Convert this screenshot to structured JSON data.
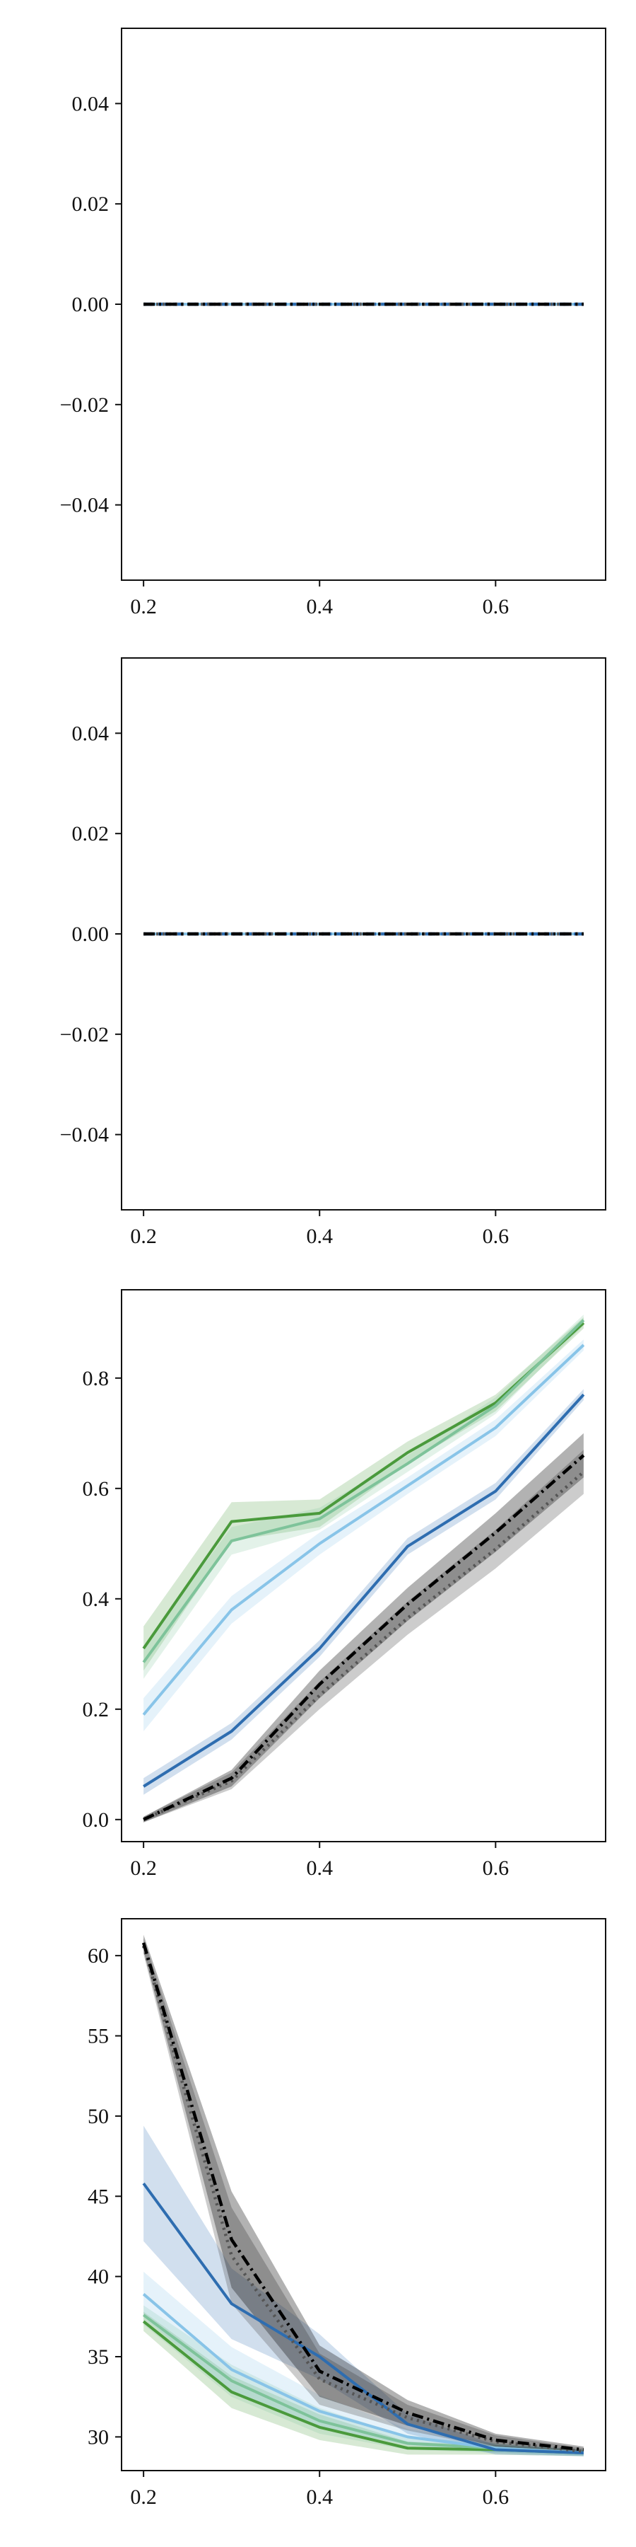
{
  "chart_data": [
    {
      "type": "line",
      "x": [
        0.2,
        0.3,
        0.4,
        0.5,
        0.6,
        0.7
      ],
      "xlim": [
        0.175,
        0.725
      ],
      "ylim": [
        -0.055,
        0.055
      ],
      "xticks": [
        0.2,
        0.4,
        0.6
      ],
      "xtick_labels": [
        "0.2",
        "0.4",
        "0.6"
      ],
      "yticks": [
        0.04,
        0.02,
        0.0,
        -0.02,
        -0.04
      ],
      "ytick_labels": [
        "0.04",
        "0.02",
        "0.00",
        "−0.02",
        "−0.04"
      ],
      "grid": false,
      "series": [
        {
          "color": "#4a9a3c",
          "style": "solid",
          "values": [
            0,
            0,
            0,
            0,
            0,
            0
          ]
        },
        {
          "color": "#7ec39a",
          "style": "solid",
          "values": [
            0,
            0,
            0,
            0,
            0,
            0
          ]
        },
        {
          "color": "#88c4e8",
          "style": "solid",
          "values": [
            0,
            0,
            0,
            0,
            0,
            0
          ]
        },
        {
          "color": "#2e6db0",
          "style": "dashed",
          "values": [
            0,
            0,
            0,
            0,
            0,
            0
          ]
        },
        {
          "color": "#555555",
          "style": "dotted",
          "values": [
            0,
            0,
            0,
            0,
            0,
            0
          ]
        },
        {
          "color": "#000000",
          "style": "dashdot",
          "values": [
            0,
            0,
            0,
            0,
            0,
            0
          ]
        }
      ]
    },
    {
      "type": "line",
      "x": [
        0.2,
        0.3,
        0.4,
        0.5,
        0.6,
        0.7
      ],
      "xlim": [
        0.175,
        0.725
      ],
      "ylim": [
        -0.055,
        0.055
      ],
      "xticks": [
        0.2,
        0.4,
        0.6
      ],
      "xtick_labels": [
        "0.2",
        "0.4",
        "0.6"
      ],
      "yticks": [
        0.04,
        0.02,
        0.0,
        -0.02,
        -0.04
      ],
      "ytick_labels": [
        "0.04",
        "0.02",
        "0.00",
        "−0.02",
        "−0.04"
      ],
      "grid": false,
      "series": [
        {
          "color": "#4a9a3c",
          "style": "solid",
          "values": [
            0,
            0,
            0,
            0,
            0,
            0
          ]
        },
        {
          "color": "#7ec39a",
          "style": "solid",
          "values": [
            0,
            0,
            0,
            0,
            0,
            0
          ]
        },
        {
          "color": "#88c4e8",
          "style": "solid",
          "values": [
            0,
            0,
            0,
            0,
            0,
            0
          ]
        },
        {
          "color": "#2e6db0",
          "style": "dashed",
          "values": [
            0,
            0,
            0,
            0,
            0,
            0
          ]
        },
        {
          "color": "#555555",
          "style": "dotted",
          "values": [
            0,
            0,
            0,
            0,
            0,
            0
          ]
        },
        {
          "color": "#000000",
          "style": "dashdot",
          "values": [
            0,
            0,
            0,
            0,
            0,
            0
          ]
        }
      ]
    },
    {
      "type": "line",
      "x": [
        0.2,
        0.3,
        0.4,
        0.5,
        0.6,
        0.7
      ],
      "xlim": [
        0.175,
        0.725
      ],
      "ylim": [
        -0.04,
        0.96
      ],
      "xticks": [
        0.2,
        0.4,
        0.6
      ],
      "xtick_labels": [
        "0.2",
        "0.4",
        "0.6"
      ],
      "yticks": [
        0.8,
        0.6,
        0.4,
        0.2,
        0.0
      ],
      "ytick_labels": [
        "0.8",
        "0.6",
        "0.4",
        "0.2",
        "0.0"
      ],
      "grid": false,
      "series": [
        {
          "color": "#4a9a3c",
          "style": "solid",
          "values": [
            0.31,
            0.54,
            0.555,
            0.665,
            0.755,
            0.9
          ],
          "band": [
            0.04,
            0.035,
            0.025,
            0.02,
            0.015,
            0.01
          ]
        },
        {
          "color": "#7ec39a",
          "style": "solid",
          "values": [
            0.285,
            0.505,
            0.545,
            0.645,
            0.75,
            0.905
          ],
          "band": [
            0.03,
            0.025,
            0.02,
            0.015,
            0.015,
            0.01
          ]
        },
        {
          "color": "#88c4e8",
          "style": "solid",
          "values": [
            0.19,
            0.38,
            0.5,
            0.605,
            0.71,
            0.86
          ],
          "band": [
            0.03,
            0.025,
            0.02,
            0.015,
            0.015,
            0.01
          ]
        },
        {
          "color": "#2e6db0",
          "style": "solid",
          "values": [
            0.06,
            0.16,
            0.31,
            0.495,
            0.595,
            0.77
          ],
          "band": [
            0.015,
            0.015,
            0.015,
            0.015,
            0.015,
            0.01
          ]
        },
        {
          "color": "#555555",
          "style": "dotted",
          "values": [
            0.0,
            0.07,
            0.225,
            0.365,
            0.49,
            0.63
          ],
          "band": [
            0.005,
            0.015,
            0.025,
            0.03,
            0.035,
            0.04
          ]
        },
        {
          "color": "#000000",
          "style": "dashdot",
          "values": [
            0.0,
            0.075,
            0.245,
            0.39,
            0.52,
            0.66
          ],
          "band": [
            0.005,
            0.015,
            0.025,
            0.03,
            0.035,
            0.04
          ]
        }
      ]
    },
    {
      "type": "line",
      "x": [
        0.2,
        0.3,
        0.4,
        0.5,
        0.6,
        0.7
      ],
      "xlim": [
        0.175,
        0.725
      ],
      "ylim": [
        27.9,
        62.3
      ],
      "xticks": [
        0.2,
        0.4,
        0.6
      ],
      "xtick_labels": [
        "0.2",
        "0.4",
        "0.6"
      ],
      "yticks": [
        60,
        55,
        50,
        45,
        40,
        35,
        30
      ],
      "ytick_labels": [
        "60",
        "55",
        "50",
        "45",
        "40",
        "35",
        "30"
      ],
      "grid": false,
      "series": [
        {
          "color": "#4a9a3c",
          "style": "solid",
          "values": [
            37.2,
            32.8,
            30.6,
            29.3,
            29.2,
            29.0
          ],
          "band": [
            0.6,
            1.0,
            0.8,
            0.4,
            0.3,
            0.2
          ]
        },
        {
          "color": "#7ec39a",
          "style": "solid",
          "values": [
            37.6,
            33.5,
            31.0,
            29.6,
            29.3,
            29.0
          ],
          "band": [
            0.6,
            1.0,
            0.8,
            0.4,
            0.3,
            0.2
          ]
        },
        {
          "color": "#88c4e8",
          "style": "solid",
          "values": [
            38.9,
            34.2,
            31.6,
            30.0,
            29.3,
            29.0
          ],
          "band": [
            1.4,
            1.4,
            1.0,
            0.5,
            0.3,
            0.2
          ]
        },
        {
          "color": "#2e6db0",
          "style": "solid",
          "values": [
            45.8,
            38.3,
            35.0,
            30.8,
            29.2,
            29.0
          ],
          "band": [
            3.6,
            2.2,
            1.4,
            0.6,
            0.3,
            0.2
          ]
        },
        {
          "color": "#555555",
          "style": "dotted",
          "values": [
            60.6,
            41.3,
            33.6,
            31.2,
            29.7,
            29.1
          ],
          "band": [
            0.5,
            3.0,
            1.6,
            0.8,
            0.4,
            0.2
          ]
        },
        {
          "color": "#000000",
          "style": "dashdot",
          "values": [
            60.8,
            42.3,
            34.1,
            31.5,
            29.8,
            29.2
          ],
          "band": [
            0.5,
            3.0,
            1.6,
            0.8,
            0.4,
            0.2
          ]
        }
      ]
    }
  ]
}
